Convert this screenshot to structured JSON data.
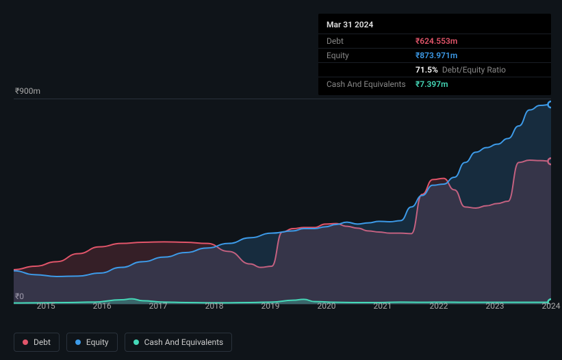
{
  "tooltip": {
    "date": "Mar 31 2024",
    "rows": [
      {
        "label": "Debt",
        "value": "₹624.553m",
        "color": "#e2556a"
      },
      {
        "label": "Equity",
        "value": "₹873.971m",
        "color": "#3d9be9"
      },
      {
        "label": "",
        "value": "71.5%",
        "suffix": "Debt/Equity Ratio",
        "color": "#ffffff"
      },
      {
        "label": "Cash And Equivalents",
        "value": "₹7.397m",
        "color": "#45d9b8"
      }
    ]
  },
  "chart": {
    "type": "area",
    "y_axis": {
      "min": 0,
      "max": 900,
      "labels": [
        {
          "text": "₹900m",
          "v": 900
        },
        {
          "text": "₹0",
          "v": 0
        }
      ]
    },
    "x_axis": {
      "ticks": [
        "2015",
        "2016",
        "2017",
        "2018",
        "2019",
        "2020",
        "2021",
        "2022",
        "2023",
        "2024"
      ]
    },
    "background_color": "#0f1419",
    "grid_color": "#2a323c",
    "series": [
      {
        "name": "Debt",
        "color": "#e2556a",
        "fill_opacity": 0.18,
        "stroke_width": 2,
        "points": [
          [
            0.0,
            150
          ],
          [
            0.04,
            165
          ],
          [
            0.08,
            185
          ],
          [
            0.12,
            220
          ],
          [
            0.16,
            250
          ],
          [
            0.2,
            265
          ],
          [
            0.24,
            270
          ],
          [
            0.28,
            272
          ],
          [
            0.32,
            270
          ],
          [
            0.36,
            265
          ],
          [
            0.4,
            230
          ],
          [
            0.44,
            175
          ],
          [
            0.46,
            160
          ],
          [
            0.48,
            165
          ],
          [
            0.5,
            315
          ],
          [
            0.52,
            330
          ],
          [
            0.54,
            335
          ],
          [
            0.56,
            335
          ],
          [
            0.58,
            350
          ],
          [
            0.6,
            352
          ],
          [
            0.62,
            340
          ],
          [
            0.64,
            332
          ],
          [
            0.66,
            320
          ],
          [
            0.68,
            315
          ],
          [
            0.7,
            310
          ],
          [
            0.72,
            310
          ],
          [
            0.74,
            308
          ],
          [
            0.76,
            480
          ],
          [
            0.78,
            545
          ],
          [
            0.8,
            550
          ],
          [
            0.82,
            500
          ],
          [
            0.84,
            425
          ],
          [
            0.86,
            420
          ],
          [
            0.88,
            430
          ],
          [
            0.9,
            440
          ],
          [
            0.92,
            450
          ],
          [
            0.94,
            620
          ],
          [
            0.96,
            630
          ],
          [
            0.98,
            628
          ],
          [
            1.0,
            625
          ]
        ],
        "end_marker": true
      },
      {
        "name": "Equity",
        "color": "#3d9be9",
        "fill_opacity": 0.18,
        "stroke_width": 2,
        "points": [
          [
            0.0,
            145
          ],
          [
            0.04,
            128
          ],
          [
            0.08,
            120
          ],
          [
            0.12,
            122
          ],
          [
            0.16,
            135
          ],
          [
            0.2,
            160
          ],
          [
            0.24,
            185
          ],
          [
            0.28,
            205
          ],
          [
            0.32,
            225
          ],
          [
            0.36,
            245
          ],
          [
            0.4,
            265
          ],
          [
            0.44,
            290
          ],
          [
            0.48,
            310
          ],
          [
            0.52,
            320
          ],
          [
            0.54,
            330
          ],
          [
            0.56,
            330
          ],
          [
            0.58,
            338
          ],
          [
            0.6,
            348
          ],
          [
            0.62,
            358
          ],
          [
            0.64,
            350
          ],
          [
            0.66,
            355
          ],
          [
            0.68,
            362
          ],
          [
            0.7,
            360
          ],
          [
            0.72,
            365
          ],
          [
            0.74,
            425
          ],
          [
            0.76,
            475
          ],
          [
            0.78,
            520
          ],
          [
            0.8,
            525
          ],
          [
            0.82,
            555
          ],
          [
            0.84,
            620
          ],
          [
            0.86,
            665
          ],
          [
            0.88,
            685
          ],
          [
            0.9,
            700
          ],
          [
            0.92,
            725
          ],
          [
            0.94,
            780
          ],
          [
            0.96,
            850
          ],
          [
            0.98,
            870
          ],
          [
            1.0,
            874
          ]
        ],
        "end_marker": true
      },
      {
        "name": "Cash And Equivalents",
        "color": "#45d9b8",
        "fill_opacity": 0.3,
        "stroke_width": 2,
        "points": [
          [
            0.0,
            4
          ],
          [
            0.05,
            5
          ],
          [
            0.1,
            6
          ],
          [
            0.15,
            8
          ],
          [
            0.2,
            18
          ],
          [
            0.22,
            22
          ],
          [
            0.24,
            14
          ],
          [
            0.28,
            8
          ],
          [
            0.32,
            6
          ],
          [
            0.36,
            5
          ],
          [
            0.4,
            5
          ],
          [
            0.44,
            6
          ],
          [
            0.48,
            8
          ],
          [
            0.52,
            16
          ],
          [
            0.54,
            20
          ],
          [
            0.56,
            10
          ],
          [
            0.6,
            7
          ],
          [
            0.64,
            6
          ],
          [
            0.68,
            6
          ],
          [
            0.72,
            8
          ],
          [
            0.76,
            7
          ],
          [
            0.8,
            8
          ],
          [
            0.84,
            7
          ],
          [
            0.88,
            7
          ],
          [
            0.92,
            7
          ],
          [
            0.96,
            7
          ],
          [
            1.0,
            7
          ]
        ],
        "end_marker": true
      }
    ]
  },
  "legend": [
    {
      "label": "Debt",
      "color": "#e2556a"
    },
    {
      "label": "Equity",
      "color": "#3d9be9"
    },
    {
      "label": "Cash And Equivalents",
      "color": "#45d9b8"
    }
  ]
}
